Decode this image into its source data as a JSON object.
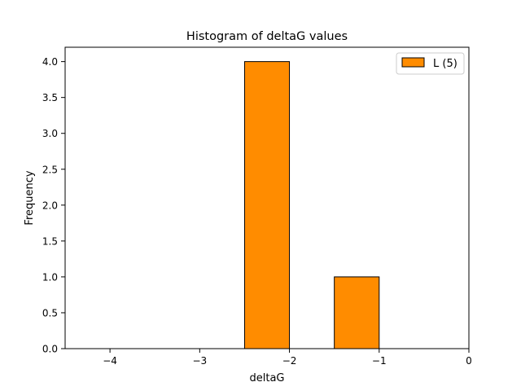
{
  "chart_data": {
    "type": "bar",
    "title": "Histogram of deltaG values",
    "xlabel": "deltaG",
    "ylabel": "Frequency",
    "xlim": [
      -4.5,
      0
    ],
    "ylim": [
      0,
      4.2
    ],
    "xticks": [
      -4,
      -3,
      -2,
      -1,
      0
    ],
    "xtick_labels": [
      "−4",
      "−3",
      "−2",
      "−1",
      "0"
    ],
    "yticks": [
      0,
      0.5,
      1,
      1.5,
      2,
      2.5,
      3,
      3.5,
      4
    ],
    "ytick_labels": [
      "0.0",
      "0.5",
      "1.0",
      "1.5",
      "2.0",
      "2.5",
      "3.0",
      "3.5",
      "4.0"
    ],
    "bins": [
      {
        "x0": -2.5,
        "x1": -2.0,
        "count": 4
      },
      {
        "x0": -1.5,
        "x1": -1.0,
        "count": 1
      }
    ],
    "series": [
      {
        "name": "L (5)",
        "color": "#ff8c00"
      }
    ],
    "legend": {
      "position": "top-right",
      "label": "L (5)"
    },
    "grid": false
  }
}
